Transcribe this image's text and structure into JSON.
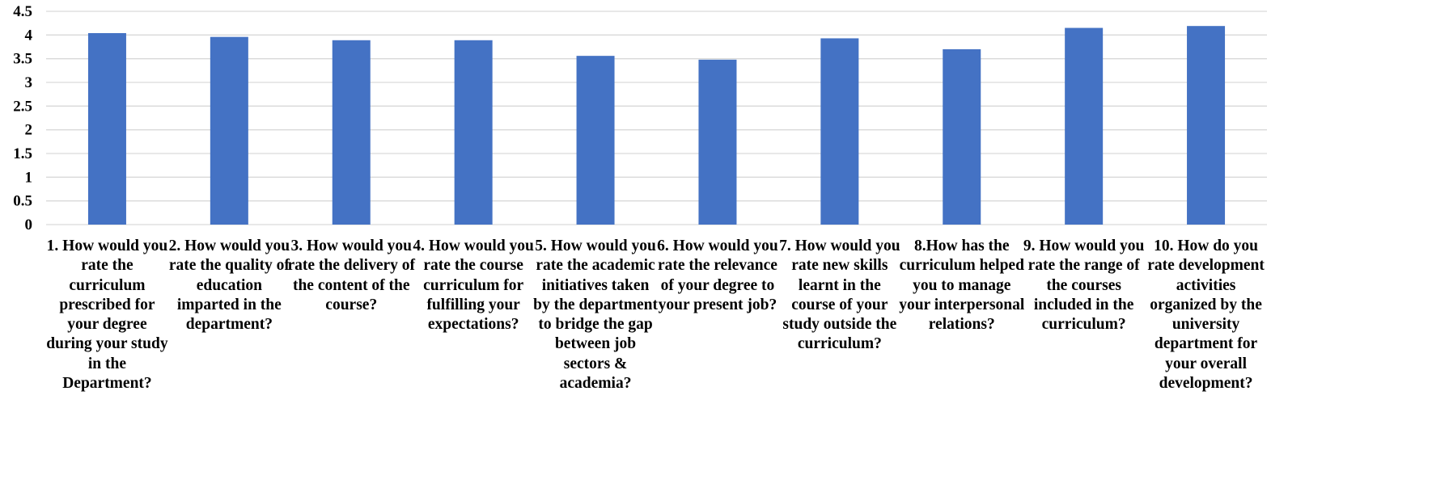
{
  "chart_data": {
    "type": "bar",
    "categories": [
      "1. How would you rate the curriculum prescribed for your degree during your study in the Department?",
      "2. How would you rate the quality of education imparted in the department?",
      "3. How would you rate the delivery of the content of the course?",
      "4. How would you rate the course curriculum for fulfilling your expectations?",
      "5. How would you rate the academic initiatives taken by the department to bridge the gap between job sectors & academia?",
      "6. How would you rate the relevance of your degree to your present job?",
      "7. How would you rate new skills learnt in the course of your study outside the curriculum?",
      "8.How has the curriculum helped you to manage your interpersonal relations?",
      "9. How would you rate the range of the courses included in the curriculum?",
      "10. How do you rate development activities organized by the university department for your overall development?"
    ],
    "values": [
      4.04,
      3.96,
      3.89,
      3.89,
      3.56,
      3.48,
      3.93,
      3.7,
      4.15,
      4.19
    ],
    "yticks": [
      "0",
      "0.5",
      "1",
      "1.5",
      "2",
      "2.5",
      "3",
      "3.5",
      "4",
      "4.5"
    ],
    "ylim": [
      0,
      4.5
    ],
    "grid": true,
    "legend": "none",
    "colors": {
      "bar": "#4472c4",
      "gridline": "#d9d9d9"
    }
  }
}
